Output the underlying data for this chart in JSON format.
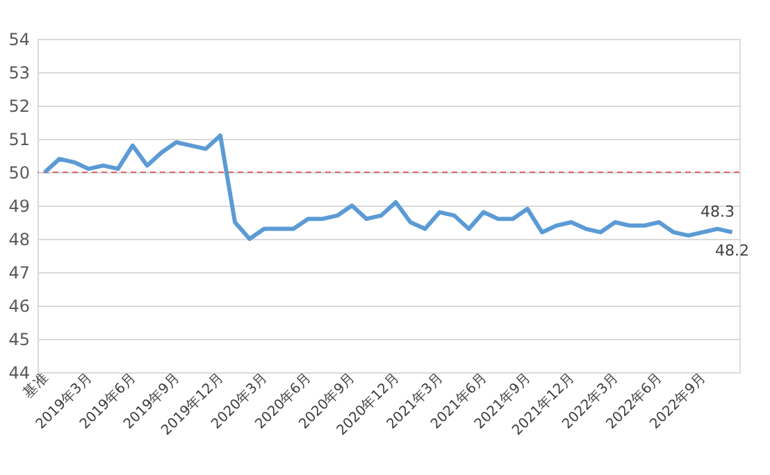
{
  "chart_data": {
    "type": "line",
    "categories": [
      "基准",
      null,
      null,
      "2019年3月",
      null,
      null,
      "2019年6月",
      null,
      null,
      "2019年9月",
      null,
      null,
      "2019年12月",
      null,
      null,
      "2020年3月",
      null,
      null,
      "2020年6月",
      null,
      null,
      "2020年9月",
      null,
      null,
      "2020年12月",
      null,
      null,
      "2021年3月",
      null,
      null,
      "2021年6月",
      null,
      null,
      "2021年9月",
      null,
      null,
      "2021年12月",
      null,
      null,
      "2022年3月",
      null,
      null,
      "2022年6月",
      null,
      null,
      "2022年9月",
      null,
      null
    ],
    "series": [
      {
        "color": "#5b9bd5",
        "values": [
          50.0,
          50.4,
          50.3,
          50.1,
          50.2,
          50.1,
          50.8,
          50.2,
          50.6,
          50.9,
          50.8,
          50.7,
          51.1,
          48.5,
          48.0,
          48.3,
          48.3,
          48.3,
          48.6,
          48.6,
          48.7,
          49.0,
          48.6,
          48.7,
          49.1,
          48.5,
          48.3,
          48.8,
          48.7,
          48.3,
          48.8,
          48.6,
          48.6,
          48.9,
          48.2,
          48.4,
          48.5,
          48.3,
          48.2,
          48.5,
          48.4,
          48.4,
          48.5,
          48.2,
          48.1,
          48.2,
          48.3,
          48.2
        ],
        "value_labels": [
          null,
          null,
          null,
          null,
          null,
          null,
          null,
          null,
          null,
          null,
          null,
          null,
          null,
          null,
          null,
          null,
          null,
          null,
          null,
          null,
          null,
          null,
          null,
          null,
          null,
          null,
          null,
          null,
          null,
          null,
          null,
          null,
          null,
          null,
          null,
          null,
          null,
          null,
          null,
          null,
          null,
          null,
          null,
          null,
          null,
          null,
          "48.3",
          "48.2"
        ]
      }
    ],
    "ylim": [
      44,
      54
    ],
    "yticks": [
      44,
      45,
      46,
      47,
      48,
      49,
      50,
      51,
      52,
      53,
      54
    ],
    "grid": "y",
    "marker": "none",
    "line_style": "solid",
    "ref_lines": [
      {
        "axis": "y",
        "value": 50,
        "color": "#e06666",
        "line_style": "dashed"
      }
    ]
  }
}
